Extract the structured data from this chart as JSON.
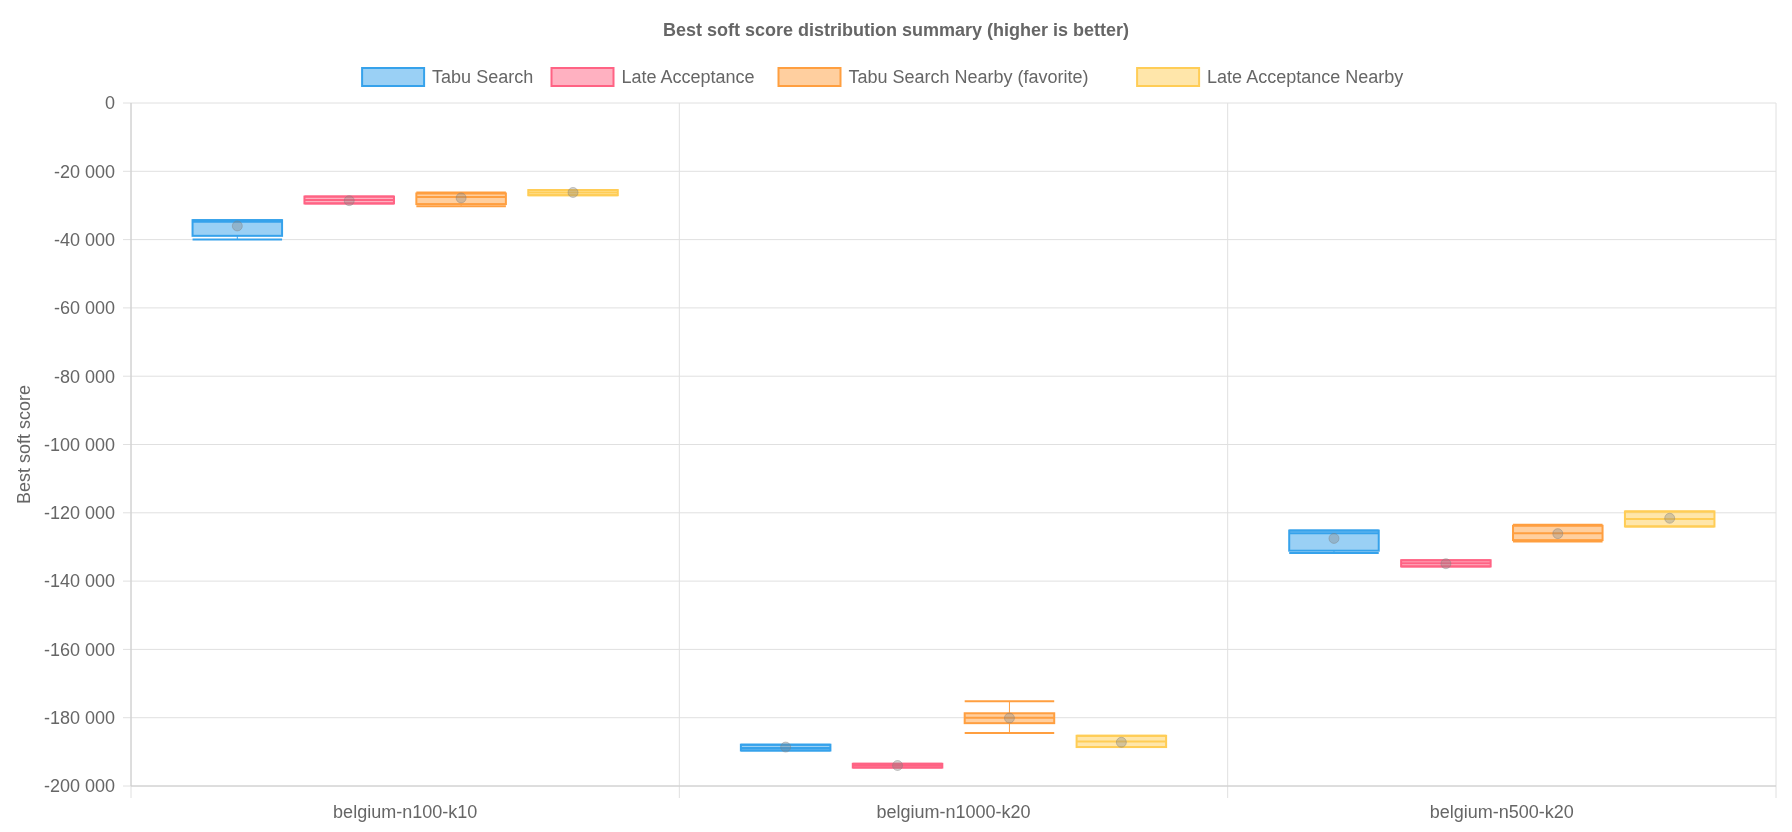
{
  "chart_data": {
    "type": "box",
    "title": "Best soft score distribution summary (higher is better)",
    "ylabel": "Best soft score",
    "categories": [
      "belgium-n100-k10",
      "belgium-n1000-k20",
      "belgium-n500-k20"
    ],
    "ylim": [
      -200000,
      0
    ],
    "yticks": [
      {
        "value": -200000,
        "label": "-200 000"
      },
      {
        "value": -180000,
        "label": "-180 000"
      },
      {
        "value": -160000,
        "label": "-160 000"
      },
      {
        "value": -140000,
        "label": "-140 000"
      },
      {
        "value": -120000,
        "label": "-120 000"
      },
      {
        "value": -100000,
        "label": "-100 000"
      },
      {
        "value": -80000,
        "label": "-80 000"
      },
      {
        "value": -60000,
        "label": "-60 000"
      },
      {
        "value": -40000,
        "label": "-40 000"
      },
      {
        "value": -20000,
        "label": "-20 000"
      },
      0
    ],
    "grid": true,
    "legend": "top",
    "series": [
      {
        "name": "Tabu Search",
        "color": "#36a2eb",
        "boxes": [
          {
            "low": -40000,
            "q1": -38900,
            "median": -34800,
            "q3": -34300,
            "high": -34300,
            "mean": -36000
          },
          {
            "low": -189600,
            "q1": -189600,
            "median": -188900,
            "q3": -187900,
            "high": -187900,
            "mean": -188600
          },
          {
            "low": -131800,
            "q1": -131100,
            "median": -126000,
            "q3": -125200,
            "high": -125200,
            "mean": -127500
          }
        ]
      },
      {
        "name": "Late Acceptance",
        "color": "#ff6384",
        "boxes": [
          {
            "low": -29400,
            "q1": -29400,
            "median": -28400,
            "q3": -27400,
            "high": -27400,
            "mean": -28600
          },
          {
            "low": -194600,
            "q1": -194600,
            "median": -194000,
            "q3": -193500,
            "high": -193500,
            "mean": -194000
          },
          {
            "low": -135700,
            "q1": -135700,
            "median": -134800,
            "q3": -133900,
            "high": -133900,
            "mean": -134900
          }
        ]
      },
      {
        "name": "Tabu Search Nearby (favorite)",
        "color": "#ff9f40",
        "boxes": [
          {
            "low": -30200,
            "q1": -29600,
            "median": -27500,
            "q3": -26500,
            "high": -26200,
            "mean": -27800
          },
          {
            "low": -184500,
            "q1": -181600,
            "median": -180000,
            "q3": -178700,
            "high": -175200,
            "mean": -180100
          },
          {
            "low": -128400,
            "q1": -128000,
            "median": -126000,
            "q3": -123800,
            "high": -123500,
            "mean": -126100
          }
        ]
      },
      {
        "name": "Late Acceptance Nearby",
        "color": "#ffcd56",
        "boxes": [
          {
            "low": -27000,
            "q1": -27000,
            "median": -26200,
            "q3": -25500,
            "high": -25500,
            "mean": -26200
          },
          {
            "low": -188600,
            "q1": -188600,
            "median": -187000,
            "q3": -185300,
            "high": -185300,
            "mean": -187200
          },
          {
            "low": -124000,
            "q1": -124000,
            "median": -121800,
            "q3": -119600,
            "high": -119600,
            "mean": -121600
          }
        ]
      }
    ]
  }
}
